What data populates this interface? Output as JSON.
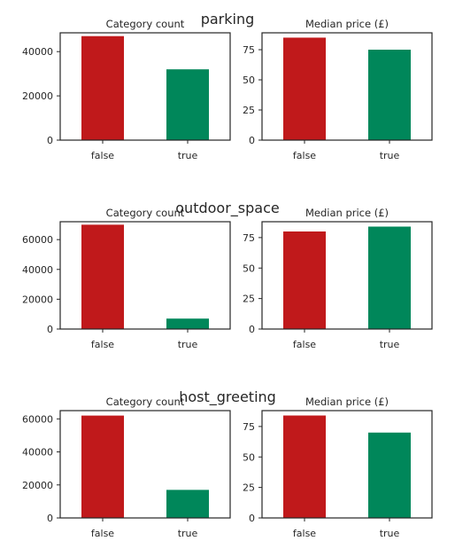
{
  "colors": {
    "false": "#c0191b",
    "true": "#00875a",
    "frame": "#262626"
  },
  "sections": [
    {
      "title": "parking",
      "charts": [
        {
          "type": "bar",
          "title": "Category count",
          "categories": [
            "false",
            "true"
          ],
          "values": [
            47000,
            32000
          ],
          "ylim": [
            0,
            48500
          ],
          "yticks": [
            0,
            20000,
            40000
          ]
        },
        {
          "type": "bar",
          "title": "Median price (£)",
          "categories": [
            "false",
            "true"
          ],
          "values": [
            85,
            75
          ],
          "ylim": [
            0,
            89
          ],
          "yticks": [
            0,
            25,
            50,
            75
          ]
        }
      ]
    },
    {
      "title": "outdoor_space",
      "charts": [
        {
          "type": "bar",
          "title": "Category count",
          "categories": [
            "false",
            "true"
          ],
          "values": [
            70000,
            7000
          ],
          "ylim": [
            0,
            72000
          ],
          "yticks": [
            0,
            20000,
            40000,
            60000
          ]
        },
        {
          "type": "bar",
          "title": "Median price (£)",
          "categories": [
            "false",
            "true"
          ],
          "values": [
            80,
            84
          ],
          "ylim": [
            0,
            88
          ],
          "yticks": [
            0,
            25,
            50,
            75
          ]
        }
      ]
    },
    {
      "title": "host_greeting",
      "charts": [
        {
          "type": "bar",
          "title": "Category count",
          "categories": [
            "false",
            "true"
          ],
          "values": [
            62000,
            17000
          ],
          "ylim": [
            0,
            65000
          ],
          "yticks": [
            0,
            20000,
            40000,
            60000
          ]
        },
        {
          "type": "bar",
          "title": "Median price (£)",
          "categories": [
            "false",
            "true"
          ],
          "values": [
            84,
            70
          ],
          "ylim": [
            0,
            88
          ],
          "yticks": [
            0,
            25,
            50,
            75
          ]
        }
      ]
    }
  ],
  "chart_data": [
    {
      "type": "bar",
      "section": "parking",
      "title": "Category count",
      "categories": [
        "false",
        "true"
      ],
      "values": [
        47000,
        32000
      ],
      "ylim": [
        0,
        48500
      ]
    },
    {
      "type": "bar",
      "section": "parking",
      "title": "Median price (£)",
      "categories": [
        "false",
        "true"
      ],
      "values": [
        85,
        75
      ],
      "ylim": [
        0,
        89
      ]
    },
    {
      "type": "bar",
      "section": "outdoor_space",
      "title": "Category count",
      "categories": [
        "false",
        "true"
      ],
      "values": [
        70000,
        7000
      ],
      "ylim": [
        0,
        72000
      ]
    },
    {
      "type": "bar",
      "section": "outdoor_space",
      "title": "Median price (£)",
      "categories": [
        "false",
        "true"
      ],
      "values": [
        80,
        84
      ],
      "ylim": [
        0,
        88
      ]
    },
    {
      "type": "bar",
      "section": "host_greeting",
      "title": "Category count",
      "categories": [
        "false",
        "true"
      ],
      "values": [
        62000,
        17000
      ],
      "ylim": [
        0,
        65000
      ]
    },
    {
      "type": "bar",
      "section": "host_greeting",
      "title": "Median price (£)",
      "categories": [
        "false",
        "true"
      ],
      "values": [
        84,
        70
      ],
      "ylim": [
        0,
        88
      ]
    }
  ]
}
